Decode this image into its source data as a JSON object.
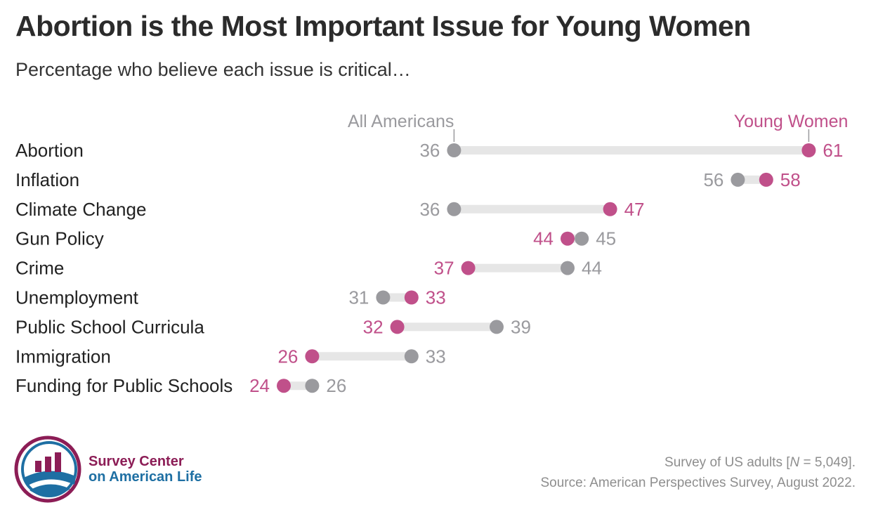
{
  "title": "Abortion is the Most Important Issue for Young Women",
  "subtitle": "Percentage who believe each issue is critical…",
  "colors": {
    "all_americans": "#9a9a9e",
    "young_women": "#c0508a",
    "connector": "#e6e6e6",
    "label_text": "#222222"
  },
  "chart_data": {
    "type": "dumbbell",
    "title": "Abortion is the Most Important Issue for Young Women",
    "subtitle": "Percentage who believe each issue is critical…",
    "series": [
      {
        "name": "All Americans",
        "values": [
          36,
          56,
          36,
          45,
          44,
          31,
          39,
          33,
          26
        ]
      },
      {
        "name": "Young Women",
        "values": [
          61,
          58,
          47,
          44,
          37,
          33,
          32,
          26,
          24
        ]
      }
    ],
    "categories": [
      "Abortion",
      "Inflation",
      "Climate Change",
      "Gun Policy",
      "Crime",
      "Unemployment",
      "Public School Curricula",
      "Immigration",
      "Funding for Public Schools"
    ],
    "series_labels": {
      "all_americans": "All Americans",
      "young_women": "Young Women"
    },
    "legend_anchor_category": "Abortion"
  },
  "footer": {
    "line1_prefix": "Survey of US adults [",
    "line1_n": "N",
    "line1_suffix": " = 5,049].",
    "line2": "Source: American Perspectives Survey, August 2022."
  },
  "logo": {
    "line1": "Survey Center",
    "line2": "on American Life",
    "ring_color": "#8c1d56",
    "blue_color": "#1e6fa3"
  }
}
